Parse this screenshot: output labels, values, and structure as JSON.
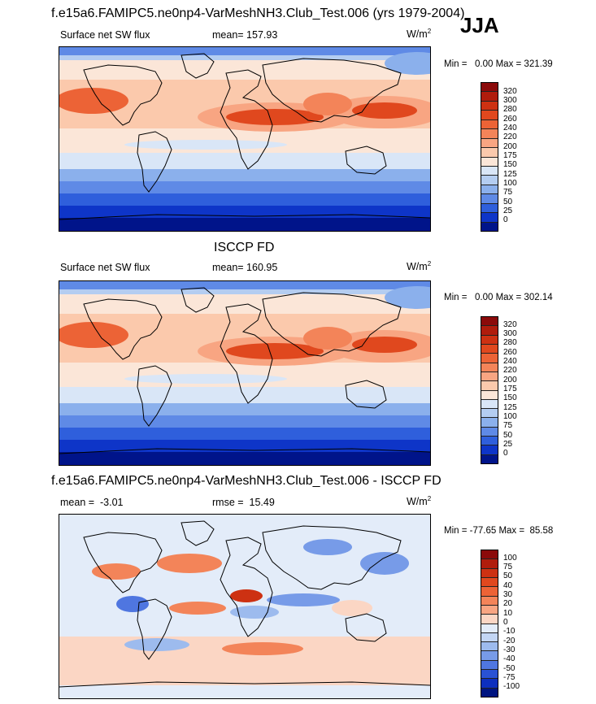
{
  "season": "JJA",
  "panels": [
    {
      "title": "f.e15a6.FAMIPC5.ne0np4-VarMeshNH3.Club_Test.006 (yrs 1979-2004)",
      "left": "Surface net SW flux",
      "center": "mean= 157.93",
      "units": "W/m",
      "units_sup": "2",
      "minmax": "Min =   0.00 Max = 321.39",
      "levels": [
        "320",
        "300",
        "280",
        "260",
        "240",
        "220",
        "200",
        "175",
        "150",
        "125",
        "100",
        "75",
        "50",
        "25",
        "0"
      ],
      "colors": [
        "#8b0a0a",
        "#b01c0c",
        "#cd3112",
        "#e0481e",
        "#ec6336",
        "#f38459",
        "#f8a582",
        "#fbc9ac",
        "#fbe6d8",
        "#d9e6f7",
        "#b4cdf1",
        "#8bb0ec",
        "#5f8ae6",
        "#2f5fdc",
        "#0e35c8",
        "#00148a"
      ],
      "map_type": "flux"
    },
    {
      "title": "ISCCP FD",
      "left": "Surface net SW flux",
      "center": "mean= 160.95",
      "units": "W/m",
      "units_sup": "2",
      "minmax": "Min =   0.00 Max = 302.14",
      "levels": [
        "320",
        "300",
        "280",
        "260",
        "240",
        "220",
        "200",
        "175",
        "150",
        "125",
        "100",
        "75",
        "50",
        "25",
        "0"
      ],
      "colors": [
        "#8b0a0a",
        "#b01c0c",
        "#cd3112",
        "#e0481e",
        "#ec6336",
        "#f38459",
        "#f8a582",
        "#fbc9ac",
        "#fbe6d8",
        "#d9e6f7",
        "#b4cdf1",
        "#8bb0ec",
        "#5f8ae6",
        "#2f5fdc",
        "#0e35c8",
        "#00148a"
      ],
      "map_type": "flux"
    },
    {
      "title": "f.e15a6.FAMIPC5.ne0np4-VarMeshNH3.Club_Test.006 - ISCCP FD",
      "left": "mean =  -3.01",
      "center": "rmse =  15.49",
      "units": "W/m",
      "units_sup": "2",
      "minmax": "Min = -77.65 Max =  85.58",
      "levels": [
        "100",
        "75",
        "50",
        "40",
        "30",
        "20",
        "10",
        "0",
        "-10",
        "-20",
        "-30",
        "-40",
        "-50",
        "-75",
        "-100"
      ],
      "colors": [
        "#8b0a0a",
        "#b01c0c",
        "#cd3112",
        "#e0481e",
        "#ec6336",
        "#f38459",
        "#f8a582",
        "#fbd6c4",
        "#e3ecf9",
        "#c3d6f4",
        "#9dbbee",
        "#779be8",
        "#4f76e0",
        "#2a52d4",
        "#0e2fbe",
        "#001480"
      ],
      "map_type": "diff"
    }
  ]
}
